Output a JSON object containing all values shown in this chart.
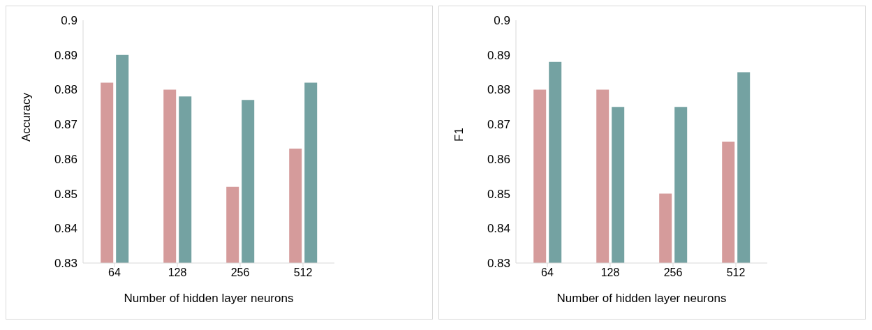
{
  "chart_data": [
    {
      "type": "bar",
      "xlabel": "Number of  hidden layer neurons",
      "ylabel": "Accuracy",
      "categories": [
        "64",
        "128",
        "256",
        "512"
      ],
      "series": [
        {
          "color": "#d59b9b",
          "values": [
            0.882,
            0.88,
            0.852,
            0.863
          ]
        },
        {
          "color": "#74a2a2",
          "values": [
            0.89,
            0.878,
            0.877,
            0.882
          ]
        }
      ],
      "ylim": [
        0.83,
        0.9
      ],
      "yticks": [
        0.83,
        0.84,
        0.85,
        0.86,
        0.87,
        0.88,
        0.89,
        0.9
      ],
      "grid": false,
      "legend": false
    },
    {
      "type": "bar",
      "xlabel": "Number of  hidden layer neurons",
      "ylabel": "F1",
      "categories": [
        "64",
        "128",
        "256",
        "512"
      ],
      "series": [
        {
          "color": "#d59b9b",
          "values": [
            0.88,
            0.88,
            0.85,
            0.865
          ]
        },
        {
          "color": "#74a2a2",
          "values": [
            0.888,
            0.875,
            0.875,
            0.885
          ]
        }
      ],
      "ylim": [
        0.83,
        0.9
      ],
      "yticks": [
        0.83,
        0.84,
        0.85,
        0.86,
        0.87,
        0.88,
        0.89,
        0.9
      ],
      "grid": false,
      "legend": false
    }
  ]
}
